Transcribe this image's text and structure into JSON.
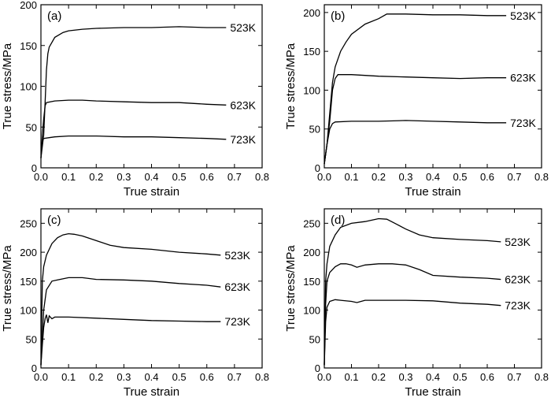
{
  "chart_data": [
    {
      "type": "line",
      "panel_label": "(a)",
      "xlabel": "True strain",
      "ylabel": "True stress/MPa",
      "xlim": [
        0.0,
        0.8
      ],
      "ylim": [
        0,
        200
      ],
      "x_ticks": [
        "0.0",
        "0.1",
        "0.2",
        "0.3",
        "0.4",
        "0.5",
        "0.6",
        "0.7",
        "0.8"
      ],
      "y_ticks": [
        "0",
        "50",
        "100",
        "150",
        "200"
      ],
      "series": [
        {
          "name": "523K",
          "points": [
            [
              0.0,
              12
            ],
            [
              0.01,
              40
            ],
            [
              0.015,
              80
            ],
            [
              0.02,
              120
            ],
            [
              0.025,
              140
            ],
            [
              0.03,
              148
            ],
            [
              0.05,
              160
            ],
            [
              0.08,
              166
            ],
            [
              0.1,
              168
            ],
            [
              0.15,
              170
            ],
            [
              0.2,
              171
            ],
            [
              0.3,
              172
            ],
            [
              0.4,
              172
            ],
            [
              0.5,
              173
            ],
            [
              0.6,
              172
            ],
            [
              0.67,
              172
            ]
          ]
        },
        {
          "name": "623K",
          "points": [
            [
              0.0,
              12
            ],
            [
              0.005,
              40
            ],
            [
              0.01,
              60
            ],
            [
              0.015,
              76
            ],
            [
              0.02,
              80
            ],
            [
              0.05,
              82
            ],
            [
              0.1,
              83
            ],
            [
              0.15,
              83
            ],
            [
              0.2,
              82
            ],
            [
              0.3,
              81
            ],
            [
              0.4,
              80
            ],
            [
              0.5,
              80
            ],
            [
              0.6,
              78
            ],
            [
              0.67,
              77
            ]
          ]
        },
        {
          "name": "723K",
          "points": [
            [
              0.0,
              12
            ],
            [
              0.003,
              25
            ],
            [
              0.006,
              33
            ],
            [
              0.01,
              36
            ],
            [
              0.03,
              37
            ],
            [
              0.05,
              38
            ],
            [
              0.1,
              39
            ],
            [
              0.15,
              39
            ],
            [
              0.2,
              39
            ],
            [
              0.3,
              38
            ],
            [
              0.4,
              38
            ],
            [
              0.5,
              37
            ],
            [
              0.6,
              36
            ],
            [
              0.67,
              35
            ]
          ]
        }
      ]
    },
    {
      "type": "line",
      "panel_label": "(b)",
      "xlabel": "True strain",
      "ylabel": "True stress/MPa",
      "xlim": [
        0.0,
        0.8
      ],
      "ylim": [
        0,
        210
      ],
      "x_ticks": [
        "0.0",
        "0.1",
        "0.2",
        "0.3",
        "0.4",
        "0.5",
        "0.6",
        "0.7",
        "0.8"
      ],
      "y_ticks": [
        "0",
        "50",
        "100",
        "150",
        "200"
      ],
      "series": [
        {
          "name": "523K",
          "points": [
            [
              0.0,
              5
            ],
            [
              0.01,
              30
            ],
            [
              0.02,
              70
            ],
            [
              0.03,
              110
            ],
            [
              0.04,
              130
            ],
            [
              0.06,
              150
            ],
            [
              0.08,
              162
            ],
            [
              0.1,
              172
            ],
            [
              0.15,
              185
            ],
            [
              0.2,
              192
            ],
            [
              0.23,
              198
            ],
            [
              0.3,
              198
            ],
            [
              0.4,
              197
            ],
            [
              0.5,
              197
            ],
            [
              0.6,
              196
            ],
            [
              0.67,
              196
            ]
          ]
        },
        {
          "name": "623K",
          "points": [
            [
              0.0,
              5
            ],
            [
              0.01,
              30
            ],
            [
              0.02,
              60
            ],
            [
              0.03,
              100
            ],
            [
              0.04,
              115
            ],
            [
              0.05,
              120
            ],
            [
              0.1,
              120
            ],
            [
              0.15,
              119
            ],
            [
              0.2,
              118
            ],
            [
              0.3,
              117
            ],
            [
              0.4,
              116
            ],
            [
              0.5,
              115
            ],
            [
              0.6,
              116
            ],
            [
              0.67,
              116
            ]
          ]
        },
        {
          "name": "723K",
          "points": [
            [
              0.0,
              5
            ],
            [
              0.01,
              30
            ],
            [
              0.02,
              50
            ],
            [
              0.03,
              57
            ],
            [
              0.04,
              59
            ],
            [
              0.1,
              60
            ],
            [
              0.2,
              60
            ],
            [
              0.3,
              61
            ],
            [
              0.4,
              60
            ],
            [
              0.5,
              59
            ],
            [
              0.6,
              58
            ],
            [
              0.67,
              58
            ]
          ]
        }
      ]
    },
    {
      "type": "line",
      "panel_label": "(c)",
      "xlabel": "True strain",
      "ylabel": "True stress/MPa",
      "xlim": [
        0.0,
        0.8
      ],
      "ylim": [
        0,
        275
      ],
      "x_ticks": [
        "0.0",
        "0.1",
        "0.2",
        "0.3",
        "0.4",
        "0.5",
        "0.6",
        "0.7",
        "0.8"
      ],
      "y_ticks": [
        "0",
        "50",
        "100",
        "150",
        "200",
        "250"
      ],
      "series": [
        {
          "name": "523K",
          "points": [
            [
              0.0,
              5
            ],
            [
              0.005,
              150
            ],
            [
              0.01,
              175
            ],
            [
              0.02,
              195
            ],
            [
              0.04,
              215
            ],
            [
              0.06,
              225
            ],
            [
              0.08,
              230
            ],
            [
              0.1,
              232
            ],
            [
              0.12,
              231
            ],
            [
              0.15,
              228
            ],
            [
              0.2,
              220
            ],
            [
              0.25,
              212
            ],
            [
              0.3,
              208
            ],
            [
              0.4,
              205
            ],
            [
              0.5,
              200
            ],
            [
              0.6,
              197
            ],
            [
              0.65,
              195
            ]
          ]
        },
        {
          "name": "623K",
          "points": [
            [
              0.0,
              5
            ],
            [
              0.01,
              100
            ],
            [
              0.02,
              135
            ],
            [
              0.04,
              150
            ],
            [
              0.06,
              152
            ],
            [
              0.1,
              156
            ],
            [
              0.15,
              156
            ],
            [
              0.2,
              153
            ],
            [
              0.3,
              152
            ],
            [
              0.4,
              150
            ],
            [
              0.5,
              146
            ],
            [
              0.6,
              143
            ],
            [
              0.65,
              140
            ]
          ]
        },
        {
          "name": "723K",
          "points": [
            [
              0.0,
              5
            ],
            [
              0.005,
              40
            ],
            [
              0.01,
              70
            ],
            [
              0.015,
              85
            ],
            [
              0.02,
              92
            ],
            [
              0.025,
              78
            ],
            [
              0.03,
              90
            ],
            [
              0.04,
              85
            ],
            [
              0.05,
              88
            ],
            [
              0.1,
              88
            ],
            [
              0.2,
              86
            ],
            [
              0.3,
              84
            ],
            [
              0.4,
              82
            ],
            [
              0.5,
              81
            ],
            [
              0.6,
              80
            ],
            [
              0.65,
              80
            ]
          ]
        }
      ]
    },
    {
      "type": "line",
      "panel_label": "(d)",
      "xlabel": "True strain",
      "ylabel": "True stress/MPa",
      "xlim": [
        0.0,
        0.8
      ],
      "ylim": [
        0,
        275
      ],
      "x_ticks": [
        "0.0",
        "0.1",
        "0.2",
        "0.3",
        "0.4",
        "0.5",
        "0.6",
        "0.7",
        "0.8"
      ],
      "y_ticks": [
        "0",
        "50",
        "100",
        "150",
        "200",
        "250"
      ],
      "series": [
        {
          "name": "523K",
          "points": [
            [
              0.0,
              5
            ],
            [
              0.005,
              150
            ],
            [
              0.01,
              180
            ],
            [
              0.02,
              210
            ],
            [
              0.04,
              230
            ],
            [
              0.06,
              243
            ],
            [
              0.1,
              250
            ],
            [
              0.15,
              253
            ],
            [
              0.2,
              258
            ],
            [
              0.23,
              257
            ],
            [
              0.26,
              250
            ],
            [
              0.3,
              240
            ],
            [
              0.35,
              230
            ],
            [
              0.4,
              225
            ],
            [
              0.5,
              222
            ],
            [
              0.6,
              220
            ],
            [
              0.65,
              218
            ]
          ]
        },
        {
          "name": "623K",
          "points": [
            [
              0.0,
              5
            ],
            [
              0.005,
              110
            ],
            [
              0.01,
              150
            ],
            [
              0.02,
              165
            ],
            [
              0.04,
              175
            ],
            [
              0.06,
              180
            ],
            [
              0.08,
              180
            ],
            [
              0.1,
              178
            ],
            [
              0.12,
              174
            ],
            [
              0.15,
              178
            ],
            [
              0.2,
              180
            ],
            [
              0.25,
              180
            ],
            [
              0.3,
              178
            ],
            [
              0.35,
              170
            ],
            [
              0.4,
              160
            ],
            [
              0.5,
              157
            ],
            [
              0.6,
              155
            ],
            [
              0.65,
              153
            ]
          ]
        },
        {
          "name": "723K",
          "points": [
            [
              0.0,
              5
            ],
            [
              0.005,
              80
            ],
            [
              0.01,
              105
            ],
            [
              0.02,
              115
            ],
            [
              0.04,
              118
            ],
            [
              0.06,
              117
            ],
            [
              0.1,
              115
            ],
            [
              0.12,
              113
            ],
            [
              0.15,
              117
            ],
            [
              0.2,
              117
            ],
            [
              0.3,
              117
            ],
            [
              0.4,
              116
            ],
            [
              0.5,
              112
            ],
            [
              0.6,
              110
            ],
            [
              0.65,
              108
            ]
          ]
        }
      ]
    }
  ]
}
